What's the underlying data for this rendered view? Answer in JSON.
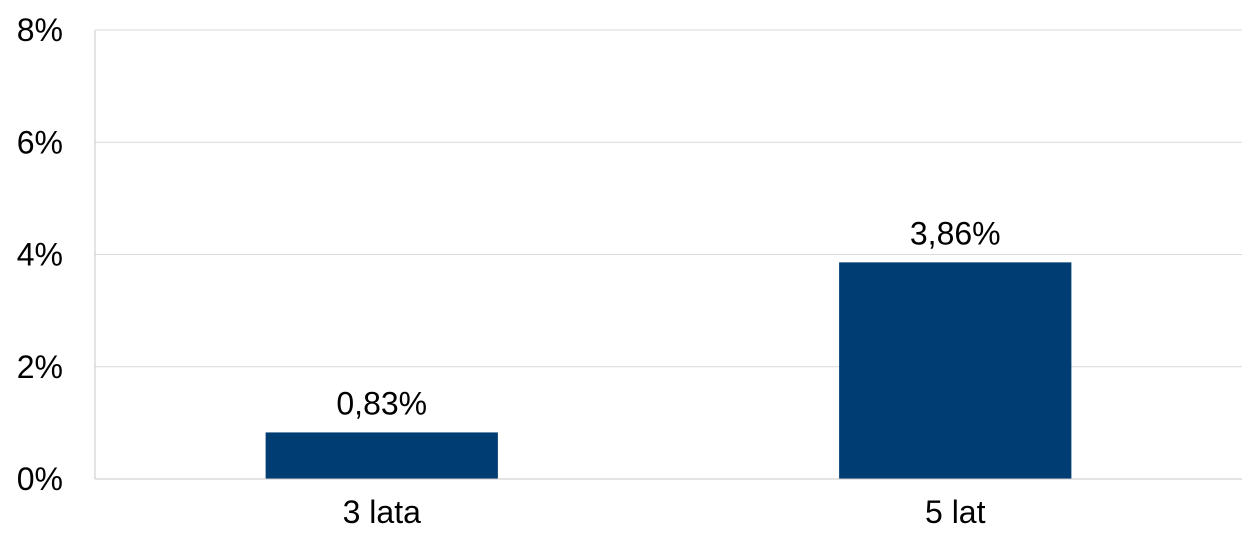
{
  "chart_data": {
    "type": "bar",
    "categories": [
      "3 lata",
      "5 lat"
    ],
    "values": [
      0.83,
      3.86
    ],
    "value_labels": [
      "0,83%",
      "3,86%"
    ],
    "ylim": [
      0,
      8
    ],
    "yticks": [
      0,
      2,
      4,
      6,
      8
    ],
    "ytick_labels": [
      "0%",
      "2%",
      "4%",
      "6%",
      "8%"
    ],
    "grid": true,
    "legend": "none",
    "colors": {
      "bar": "#003d73",
      "grid": "#d9d9d9",
      "axis": "#c8c8c8",
      "text": "#000000"
    }
  }
}
